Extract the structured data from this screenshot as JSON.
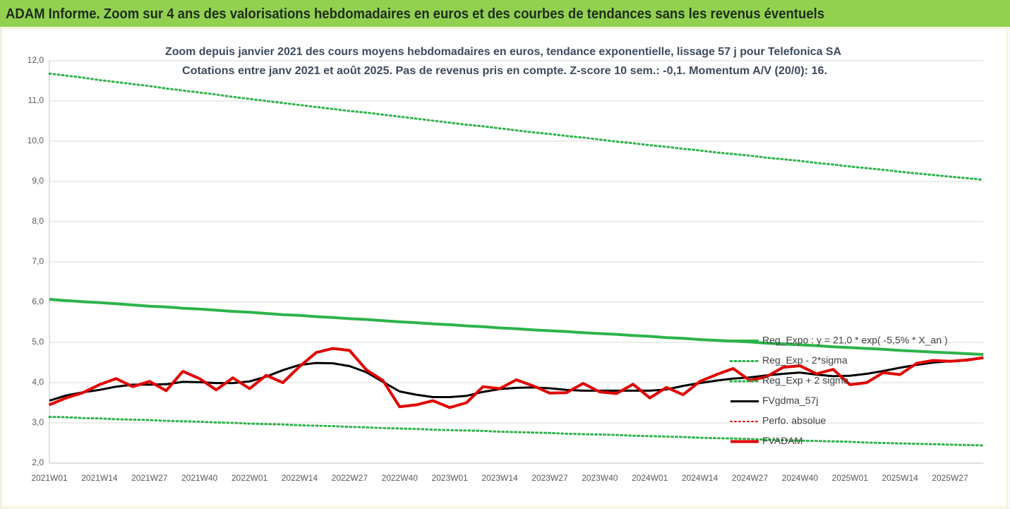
{
  "header": {
    "title": "ADAM Informe. Zoom sur 4 ans des valorisations hebdomadaires en euros et des courbes de tendances sans les revenus éventuels"
  },
  "chart_data": {
    "type": "line",
    "title": "Zoom depuis janvier 2021 des cours moyens hebdomadaires en euros, tendance exponentielle, lissage 57 j pour Telefonica SA",
    "subtitle": "Cotations entre janv 2021 et août 2025.  Pas de revenus pris en compte. Z-score 10 sem.: -0,1. Momentum A/V (20/0): 16.",
    "categories": [
      "2021W01",
      null,
      null,
      "2021W14",
      null,
      null,
      "2021W27",
      null,
      null,
      "2021W40",
      null,
      null,
      "2022W01",
      null,
      null,
      "2022W14",
      null,
      null,
      "2022W27",
      null,
      null,
      "2022W40",
      null,
      null,
      "2023W01",
      null,
      null,
      "2023W14",
      null,
      null,
      "2023W27",
      null,
      null,
      "2023W40",
      null,
      null,
      "2024W01",
      null,
      null,
      "2024W14",
      null,
      null,
      "2024W27",
      null,
      null,
      "2024W40",
      null,
      null,
      "2025W01",
      null,
      null,
      "2025W14",
      null,
      null,
      "2025W27",
      null,
      null
    ],
    "ylim": [
      2,
      12
    ],
    "yticks": [
      {
        "value": 2,
        "label": "2,0"
      },
      {
        "value": 3,
        "label": "3,0"
      },
      {
        "value": 4,
        "label": "4,0"
      },
      {
        "value": 5,
        "label": "5,0"
      },
      {
        "value": 6,
        "label": "6,0"
      },
      {
        "value": 7,
        "label": "7,0"
      },
      {
        "value": 8,
        "label": "8,0"
      },
      {
        "value": 9,
        "label": "9,0"
      },
      {
        "value": 10,
        "label": "10,0"
      },
      {
        "value": 11,
        "label": "11,0"
      },
      {
        "value": 12,
        "label": "12,0"
      }
    ],
    "grid": true,
    "legend": "lower right",
    "series": [
      {
        "name": "Reg_Expo : y = 21,0 * exp( -5,5% *  X_an )",
        "color": "#2db34a",
        "line_style": "solid",
        "linewidth": 4,
        "values": [
          6.07,
          6.04,
          6.01,
          5.99,
          5.96,
          5.93,
          5.9,
          5.88,
          5.85,
          5.83,
          5.8,
          5.77,
          5.75,
          5.72,
          5.69,
          5.67,
          5.64,
          5.62,
          5.59,
          5.57,
          5.54,
          5.51,
          5.49,
          5.46,
          5.44,
          5.41,
          5.39,
          5.36,
          5.34,
          5.31,
          5.29,
          5.27,
          5.24,
          5.22,
          5.2,
          5.17,
          5.15,
          5.12,
          5.1,
          5.07,
          5.05,
          5.03,
          5.01,
          4.98,
          4.96,
          4.94,
          4.92,
          4.89,
          4.87,
          4.85,
          4.83,
          4.8,
          4.78,
          4.76,
          4.74,
          4.72,
          4.7
        ]
      },
      {
        "name": "Reg_Exp - 2*sigma",
        "color": "#2db34a",
        "line_style": "dotted",
        "linewidth": 3,
        "values": [
          3.15,
          3.14,
          3.12,
          3.11,
          3.09,
          3.08,
          3.07,
          3.05,
          3.04,
          3.03,
          3.01,
          3.0,
          2.98,
          2.97,
          2.96,
          2.94,
          2.93,
          2.92,
          2.9,
          2.89,
          2.87,
          2.86,
          2.85,
          2.83,
          2.82,
          2.81,
          2.8,
          2.78,
          2.77,
          2.76,
          2.75,
          2.73,
          2.72,
          2.71,
          2.7,
          2.68,
          2.67,
          2.66,
          2.65,
          2.63,
          2.62,
          2.61,
          2.6,
          2.58,
          2.57,
          2.56,
          2.55,
          2.54,
          2.53,
          2.51,
          2.5,
          2.49,
          2.48,
          2.47,
          2.46,
          2.45,
          2.44
        ]
      },
      {
        "name": "Reg_Exp + 2 sigma",
        "color": "#2db34a",
        "line_style": "dotted",
        "linewidth": 3,
        "values": [
          11.68,
          11.63,
          11.58,
          11.52,
          11.47,
          11.42,
          11.37,
          11.31,
          11.26,
          11.21,
          11.16,
          11.1,
          11.05,
          11.0,
          10.95,
          10.9,
          10.85,
          10.8,
          10.75,
          10.71,
          10.66,
          10.61,
          10.56,
          10.51,
          10.46,
          10.41,
          10.37,
          10.32,
          10.27,
          10.22,
          10.18,
          10.13,
          10.09,
          10.04,
          9.99,
          9.95,
          9.9,
          9.86,
          9.81,
          9.77,
          9.72,
          9.68,
          9.64,
          9.59,
          9.55,
          9.51,
          9.46,
          9.42,
          9.37,
          9.33,
          9.29,
          9.24,
          9.2,
          9.16,
          9.12,
          9.08,
          9.04
        ]
      },
      {
        "name": "FVgdma_57j",
        "color": "#000000",
        "line_style": "solid",
        "linewidth": 3,
        "values": [
          3.55,
          3.68,
          3.76,
          3.82,
          3.9,
          3.95,
          3.95,
          3.96,
          4.02,
          4.01,
          3.99,
          3.99,
          4.03,
          4.15,
          4.31,
          4.44,
          4.49,
          4.48,
          4.41,
          4.26,
          4.02,
          3.78,
          3.7,
          3.64,
          3.64,
          3.67,
          3.77,
          3.84,
          3.87,
          3.88,
          3.86,
          3.82,
          3.8,
          3.8,
          3.8,
          3.8,
          3.8,
          3.83,
          3.92,
          3.99,
          4.05,
          4.1,
          4.13,
          4.18,
          4.22,
          4.25,
          4.2,
          4.16,
          4.17,
          4.22,
          4.29,
          4.37,
          4.44,
          4.5,
          4.53,
          4.57,
          4.61
        ]
      },
      {
        "name": "Perfo. absolue",
        "color": "#e00000",
        "line_style": "dotted",
        "linewidth": 2,
        "values": [
          3.45,
          3.62,
          3.75,
          3.95,
          4.1,
          3.9,
          4.03,
          3.8,
          4.28,
          4.1,
          3.82,
          4.12,
          3.85,
          4.18,
          4.0,
          4.4,
          4.75,
          4.85,
          4.8,
          4.32,
          4.05,
          3.4,
          3.45,
          3.55,
          3.38,
          3.5,
          3.9,
          3.85,
          4.07,
          3.92,
          3.74,
          3.75,
          3.98,
          3.77,
          3.73,
          3.96,
          3.62,
          3.88,
          3.7,
          4.03,
          4.2,
          4.35,
          4.05,
          4.15,
          4.38,
          4.42,
          4.22,
          4.33,
          3.95,
          4.0,
          4.25,
          4.2,
          4.48,
          4.55,
          4.53,
          4.56,
          4.62
        ]
      },
      {
        "name": "FVADAM",
        "color": "#e00000",
        "line_style": "solid",
        "linewidth": 4,
        "values": [
          3.45,
          3.62,
          3.75,
          3.95,
          4.1,
          3.9,
          4.03,
          3.8,
          4.28,
          4.1,
          3.82,
          4.12,
          3.85,
          4.18,
          4.0,
          4.4,
          4.75,
          4.85,
          4.8,
          4.32,
          4.05,
          3.4,
          3.45,
          3.55,
          3.38,
          3.5,
          3.9,
          3.85,
          4.07,
          3.92,
          3.74,
          3.75,
          3.98,
          3.77,
          3.73,
          3.96,
          3.62,
          3.88,
          3.7,
          4.03,
          4.2,
          4.35,
          4.05,
          4.15,
          4.38,
          4.42,
          4.22,
          4.33,
          3.95,
          4.0,
          4.25,
          4.2,
          4.48,
          4.55,
          4.53,
          4.56,
          4.62
        ]
      }
    ]
  }
}
